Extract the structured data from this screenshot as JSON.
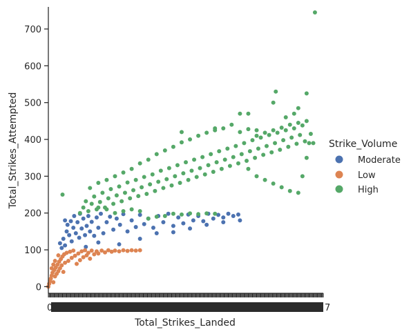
{
  "chart_data": {
    "type": "scatter",
    "xlabel": "Total_Strikes_Landed",
    "ylabel": "Total_Strikes_Attempted",
    "yticks": [
      0,
      100,
      200,
      300,
      400,
      500,
      600,
      700
    ],
    "ylim": [
      -18,
      760
    ],
    "xlim": [
      0,
      330
    ],
    "x_tick_label_first": "0",
    "x_tick_label_last": "7",
    "legend": {
      "title": "Strike_Volume",
      "placement": "right",
      "entries": [
        {
          "label": "Moderate",
          "color": "#4c72b0"
        },
        {
          "label": "Low",
          "color": "#dd8452"
        },
        {
          "label": "High",
          "color": "#55a868"
        }
      ]
    },
    "series": [
      {
        "name": "Moderate",
        "color": "#4c72b0",
        "points": [
          [
            14,
            118
          ],
          [
            16,
            105
          ],
          [
            18,
            130
          ],
          [
            20,
            112
          ],
          [
            22,
            150
          ],
          [
            23,
            168
          ],
          [
            25,
            140
          ],
          [
            27,
            178
          ],
          [
            28,
            123
          ],
          [
            30,
            160
          ],
          [
            31,
            192
          ],
          [
            33,
            145
          ],
          [
            35,
            175
          ],
          [
            37,
            133
          ],
          [
            38,
            198
          ],
          [
            40,
            158
          ],
          [
            42,
            185
          ],
          [
            44,
            140
          ],
          [
            46,
            165
          ],
          [
            48,
            192
          ],
          [
            50,
            150
          ],
          [
            52,
            176
          ],
          [
            55,
            138
          ],
          [
            58,
            188
          ],
          [
            60,
            160
          ],
          [
            63,
            198
          ],
          [
            66,
            145
          ],
          [
            70,
            175
          ],
          [
            74,
            190
          ],
          [
            78,
            155
          ],
          [
            82,
            185
          ],
          [
            86,
            168
          ],
          [
            90,
            197
          ],
          [
            95,
            150
          ],
          [
            100,
            180
          ],
          [
            105,
            162
          ],
          [
            110,
            195
          ],
          [
            115,
            170
          ],
          [
            120,
            185
          ],
          [
            126,
            160
          ],
          [
            132,
            192
          ],
          [
            138,
            175
          ],
          [
            144,
            198
          ],
          [
            150,
            165
          ],
          [
            156,
            188
          ],
          [
            162,
            172
          ],
          [
            168,
            196
          ],
          [
            174,
            180
          ],
          [
            180,
            192
          ],
          [
            186,
            178
          ],
          [
            192,
            198
          ],
          [
            198,
            185
          ],
          [
            204,
            195
          ],
          [
            210,
            188
          ],
          [
            216,
            198
          ],
          [
            222,
            192
          ],
          [
            228,
            196
          ],
          [
            20,
            180
          ],
          [
            45,
            108
          ],
          [
            60,
            120
          ],
          [
            85,
            115
          ],
          [
            110,
            130
          ],
          [
            130,
            145
          ],
          [
            150,
            148
          ],
          [
            170,
            158
          ],
          [
            190,
            168
          ],
          [
            210,
            175
          ],
          [
            230,
            180
          ]
        ]
      },
      {
        "name": "Low",
        "color": "#dd8452",
        "points": [
          [
            0,
            0
          ],
          [
            1,
            8
          ],
          [
            2,
            15
          ],
          [
            3,
            22
          ],
          [
            4,
            30
          ],
          [
            5,
            38
          ],
          [
            6,
            12
          ],
          [
            7,
            45
          ],
          [
            8,
            28
          ],
          [
            9,
            52
          ],
          [
            10,
            35
          ],
          [
            11,
            60
          ],
          [
            12,
            42
          ],
          [
            13,
            68
          ],
          [
            14,
            50
          ],
          [
            15,
            75
          ],
          [
            16,
            58
          ],
          [
            17,
            82
          ],
          [
            18,
            40
          ],
          [
            19,
            88
          ],
          [
            20,
            65
          ],
          [
            22,
            92
          ],
          [
            24,
            70
          ],
          [
            26,
            95
          ],
          [
            28,
            78
          ],
          [
            30,
            98
          ],
          [
            32,
            84
          ],
          [
            34,
            62
          ],
          [
            36,
            90
          ],
          [
            38,
            72
          ],
          [
            40,
            96
          ],
          [
            42,
            80
          ],
          [
            44,
            99
          ],
          [
            46,
            85
          ],
          [
            48,
            92
          ],
          [
            50,
            76
          ],
          [
            52,
            98
          ],
          [
            55,
            88
          ],
          [
            58,
            96
          ],
          [
            60,
            90
          ],
          [
            64,
            98
          ],
          [
            68,
            93
          ],
          [
            72,
            99
          ],
          [
            76,
            95
          ],
          [
            80,
            98
          ],
          [
            85,
            96
          ],
          [
            90,
            99
          ],
          [
            95,
            97
          ],
          [
            100,
            99
          ],
          [
            105,
            98
          ],
          [
            110,
            99
          ],
          [
            4,
            50
          ],
          [
            8,
            70
          ],
          [
            12,
            85
          ],
          [
            6,
            60
          ]
        ]
      },
      {
        "name": "High",
        "color": "#55a868",
        "points": [
          [
            17,
            250
          ],
          [
            38,
            200
          ],
          [
            42,
            215
          ],
          [
            45,
            232
          ],
          [
            48,
            205
          ],
          [
            50,
            268
          ],
          [
            52,
            225
          ],
          [
            55,
            245
          ],
          [
            58,
            210
          ],
          [
            60,
            282
          ],
          [
            62,
            230
          ],
          [
            65,
            255
          ],
          [
            68,
            215
          ],
          [
            70,
            290
          ],
          [
            72,
            240
          ],
          [
            75,
            265
          ],
          [
            78,
            225
          ],
          [
            80,
            300
          ],
          [
            82,
            248
          ],
          [
            85,
            272
          ],
          [
            88,
            232
          ],
          [
            90,
            310
          ],
          [
            92,
            255
          ],
          [
            95,
            283
          ],
          [
            98,
            240
          ],
          [
            100,
            320
          ],
          [
            102,
            262
          ],
          [
            105,
            290
          ],
          [
            108,
            246
          ],
          [
            110,
            335
          ],
          [
            112,
            270
          ],
          [
            115,
            298
          ],
          [
            118,
            252
          ],
          [
            120,
            345
          ],
          [
            122,
            278
          ],
          [
            125,
            305
          ],
          [
            128,
            260
          ],
          [
            130,
            360
          ],
          [
            132,
            285
          ],
          [
            135,
            315
          ],
          [
            138,
            268
          ],
          [
            140,
            370
          ],
          [
            142,
            292
          ],
          [
            145,
            322
          ],
          [
            148,
            275
          ],
          [
            150,
            380
          ],
          [
            152,
            300
          ],
          [
            155,
            330
          ],
          [
            158,
            282
          ],
          [
            160,
            392
          ],
          [
            162,
            308
          ],
          [
            165,
            338
          ],
          [
            168,
            290
          ],
          [
            170,
            400
          ],
          [
            172,
            315
          ],
          [
            175,
            345
          ],
          [
            178,
            298
          ],
          [
            180,
            410
          ],
          [
            182,
            322
          ],
          [
            185,
            352
          ],
          [
            188,
            305
          ],
          [
            190,
            418
          ],
          [
            192,
            330
          ],
          [
            195,
            360
          ],
          [
            198,
            312
          ],
          [
            200,
            425
          ],
          [
            202,
            338
          ],
          [
            205,
            368
          ],
          [
            208,
            320
          ],
          [
            210,
            430
          ],
          [
            212,
            345
          ],
          [
            215,
            375
          ],
          [
            218,
            328
          ],
          [
            220,
            440
          ],
          [
            222,
            352
          ],
          [
            225,
            382
          ],
          [
            228,
            335
          ],
          [
            230,
            420
          ],
          [
            232,
            360
          ],
          [
            235,
            390
          ],
          [
            238,
            342
          ],
          [
            240,
            428
          ],
          [
            242,
            368
          ],
          [
            245,
            398
          ],
          [
            248,
            350
          ],
          [
            250,
            410
          ],
          [
            252,
            375
          ],
          [
            255,
            405
          ],
          [
            258,
            358
          ],
          [
            260,
            418
          ],
          [
            262,
            382
          ],
          [
            265,
            412
          ],
          [
            268,
            365
          ],
          [
            270,
            425
          ],
          [
            272,
            390
          ],
          [
            275,
            418
          ],
          [
            278,
            372
          ],
          [
            280,
            432
          ],
          [
            282,
            398
          ],
          [
            285,
            425
          ],
          [
            288,
            380
          ],
          [
            290,
            440
          ],
          [
            292,
            405
          ],
          [
            295,
            430
          ],
          [
            298,
            388
          ],
          [
            300,
            445
          ],
          [
            302,
            412
          ],
          [
            305,
            438
          ],
          [
            308,
            395
          ],
          [
            310,
            450
          ],
          [
            120,
            185
          ],
          [
            130,
            190
          ],
          [
            140,
            192
          ],
          [
            150,
            198
          ],
          [
            160,
            196
          ],
          [
            170,
            199
          ],
          [
            180,
            197
          ],
          [
            190,
            199
          ],
          [
            200,
            198
          ],
          [
            110,
            205
          ],
          [
            100,
            210
          ],
          [
            240,
            320
          ],
          [
            250,
            300
          ],
          [
            260,
            290
          ],
          [
            270,
            280
          ],
          [
            280,
            270
          ],
          [
            290,
            260
          ],
          [
            300,
            255
          ],
          [
            305,
            300
          ],
          [
            310,
            350
          ],
          [
            313,
            390
          ],
          [
            80,
            200
          ],
          [
            90,
            205
          ],
          [
            70,
            210
          ],
          [
            60,
            215
          ],
          [
            240,
            470
          ],
          [
            250,
            425
          ],
          [
            270,
            500
          ],
          [
            285,
            460
          ],
          [
            295,
            470
          ],
          [
            310,
            525
          ],
          [
            300,
            485
          ],
          [
            160,
            420
          ],
          [
            200,
            430
          ],
          [
            230,
            470
          ],
          [
            273,
            530
          ],
          [
            320,
            745
          ],
          [
            315,
            415
          ],
          [
            318,
            390
          ]
        ]
      }
    ]
  }
}
